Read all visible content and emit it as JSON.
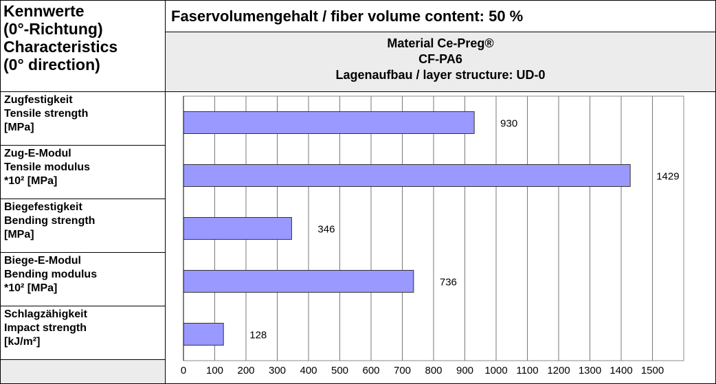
{
  "header": {
    "lines": [
      "Kennwerte",
      "(0°-Richtung)",
      "Characteristics",
      "(0° direction)"
    ]
  },
  "title": "Faservolumengehalt / fiber volume content: 50 %",
  "material": {
    "lines": [
      "Material Ce-Preg®",
      "CF-PA6",
      "Lagenaufbau / layer structure: UD-0"
    ]
  },
  "rows": [
    {
      "lines": [
        "Zugfestigkeit",
        "Tensile strength",
        "[MPa]"
      ]
    },
    {
      "lines": [
        "Zug-E-Modul",
        "Tensile modulus",
        "*10² [MPa]"
      ]
    },
    {
      "lines": [
        "Biegefestigkeit",
        "Bending strength",
        "[MPa]"
      ]
    },
    {
      "lines": [
        "Biege-E-Modul",
        "Bending modulus",
        "*10² [MPa]"
      ]
    },
    {
      "lines": [
        "Schlagzähigkeit",
        "Impact strength",
        "[kJ/m²]"
      ]
    }
  ],
  "chart_data": {
    "type": "barh",
    "values": [
      930,
      1429,
      346,
      736,
      128
    ],
    "color": "#9999ff",
    "xlim": [
      0,
      1600
    ],
    "xticks": [
      0,
      100,
      200,
      300,
      400,
      500,
      600,
      700,
      800,
      900,
      1000,
      1100,
      1200,
      1300,
      1400,
      1500
    ],
    "grid": true
  }
}
